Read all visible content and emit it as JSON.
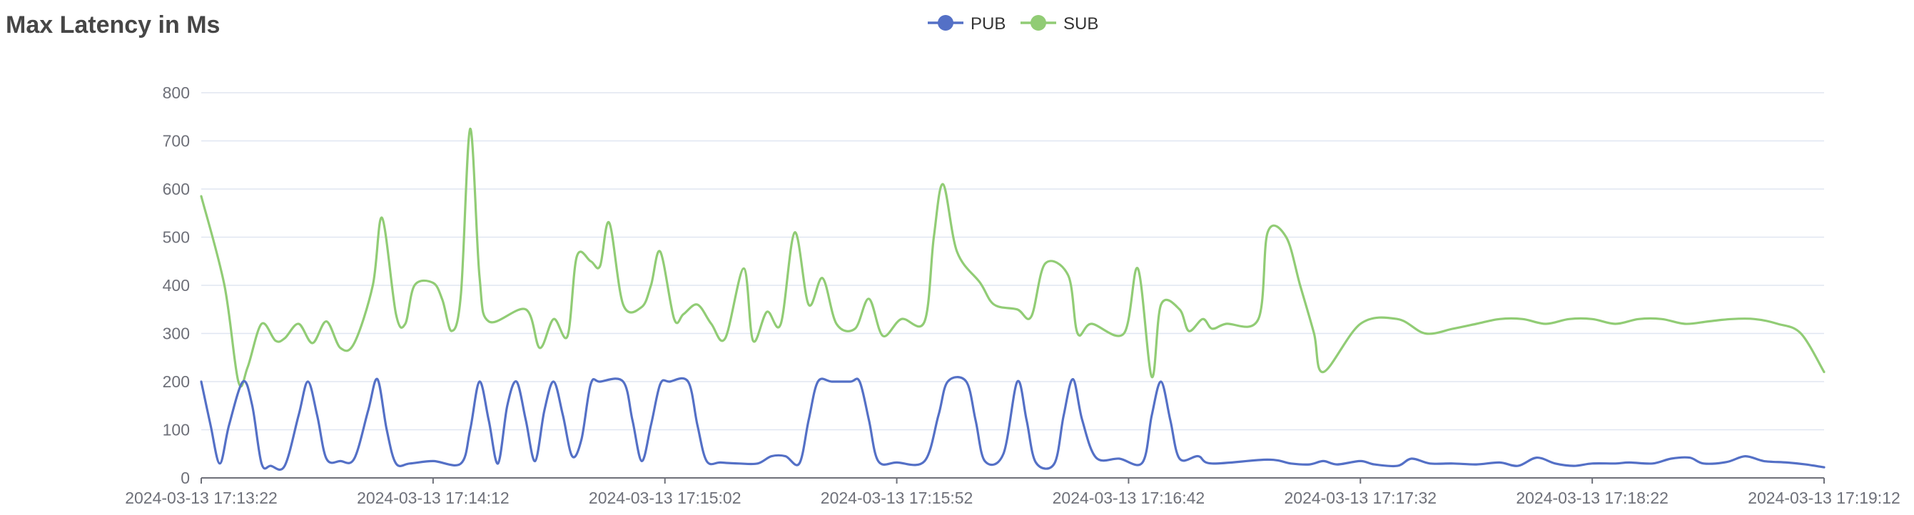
{
  "chart_data": {
    "type": "line",
    "title": "Max Latency in Ms",
    "xlabel": "",
    "ylabel": "",
    "ylim": [
      0,
      800
    ],
    "y_ticks": [
      0,
      100,
      200,
      300,
      400,
      500,
      600,
      700,
      800
    ],
    "x_tick_labels": [
      "2024-03-13 17:13:22",
      "2024-03-13 17:14:12",
      "2024-03-13 17:15:02",
      "2024-03-13 17:15:52",
      "2024-03-13 17:16:42",
      "2024-03-13 17:17:32",
      "2024-03-13 17:18:22",
      "2024-03-13 17:19:12"
    ],
    "x_start": "2024-03-13 17:13:22",
    "x_end": "2024-03-13 17:19:12",
    "grid": true,
    "legend": "top-center",
    "series": [
      {
        "name": "PUB",
        "color": "#5470c6",
        "points": [
          [
            "2024-03-13 17:13:22",
            200
          ],
          [
            "2024-03-13 17:13:24",
            110
          ],
          [
            "2024-03-13 17:13:26",
            30
          ],
          [
            "2024-03-13 17:13:28",
            110
          ],
          [
            "2024-03-13 17:13:31",
            200
          ],
          [
            "2024-03-13 17:13:33",
            150
          ],
          [
            "2024-03-13 17:13:35",
            30
          ],
          [
            "2024-03-13 17:13:37",
            25
          ],
          [
            "2024-03-13 17:13:40",
            25
          ],
          [
            "2024-03-13 17:13:43",
            130
          ],
          [
            "2024-03-13 17:13:45",
            200
          ],
          [
            "2024-03-13 17:13:47",
            130
          ],
          [
            "2024-03-13 17:13:49",
            40
          ],
          [
            "2024-03-13 17:13:52",
            35
          ],
          [
            "2024-03-13 17:13:55",
            40
          ],
          [
            "2024-03-13 17:13:58",
            140
          ],
          [
            "2024-03-13 17:14:00",
            205
          ],
          [
            "2024-03-13 17:14:02",
            100
          ],
          [
            "2024-03-13 17:14:04",
            30
          ],
          [
            "2024-03-13 17:14:07",
            30
          ],
          [
            "2024-03-13 17:14:12",
            35
          ],
          [
            "2024-03-13 17:14:18",
            30
          ],
          [
            "2024-03-13 17:14:20",
            100
          ],
          [
            "2024-03-13 17:14:22",
            200
          ],
          [
            "2024-03-13 17:14:24",
            120
          ],
          [
            "2024-03-13 17:14:26",
            30
          ],
          [
            "2024-03-13 17:14:28",
            150
          ],
          [
            "2024-03-13 17:14:30",
            200
          ],
          [
            "2024-03-13 17:14:32",
            120
          ],
          [
            "2024-03-13 17:14:34",
            35
          ],
          [
            "2024-03-13 17:14:36",
            140
          ],
          [
            "2024-03-13 17:14:38",
            200
          ],
          [
            "2024-03-13 17:14:40",
            130
          ],
          [
            "2024-03-13 17:14:42",
            45
          ],
          [
            "2024-03-13 17:14:44",
            80
          ],
          [
            "2024-03-13 17:14:46",
            195
          ],
          [
            "2024-03-13 17:14:48",
            200
          ],
          [
            "2024-03-13 17:14:53",
            200
          ],
          [
            "2024-03-13 17:14:55",
            120
          ],
          [
            "2024-03-13 17:14:57",
            35
          ],
          [
            "2024-03-13 17:14:59",
            110
          ],
          [
            "2024-03-13 17:15:01",
            195
          ],
          [
            "2024-03-13 17:15:03",
            200
          ],
          [
            "2024-03-13 17:15:07",
            200
          ],
          [
            "2024-03-13 17:15:09",
            110
          ],
          [
            "2024-03-13 17:15:11",
            35
          ],
          [
            "2024-03-13 17:15:14",
            32
          ],
          [
            "2024-03-13 17:15:18",
            30
          ],
          [
            "2024-03-13 17:15:22",
            30
          ],
          [
            "2024-03-13 17:15:25",
            45
          ],
          [
            "2024-03-13 17:15:28",
            45
          ],
          [
            "2024-03-13 17:15:31",
            30
          ],
          [
            "2024-03-13 17:15:33",
            120
          ],
          [
            "2024-03-13 17:15:35",
            200
          ],
          [
            "2024-03-13 17:15:38",
            200
          ],
          [
            "2024-03-13 17:15:42",
            200
          ],
          [
            "2024-03-13 17:15:44",
            200
          ],
          [
            "2024-03-13 17:15:46",
            120
          ],
          [
            "2024-03-13 17:15:48",
            35
          ],
          [
            "2024-03-13 17:15:52",
            32
          ],
          [
            "2024-03-13 17:15:58",
            35
          ],
          [
            "2024-03-13 17:16:01",
            130
          ],
          [
            "2024-03-13 17:16:03",
            200
          ],
          [
            "2024-03-13 17:16:07",
            200
          ],
          [
            "2024-03-13 17:16:09",
            120
          ],
          [
            "2024-03-13 17:16:11",
            35
          ],
          [
            "2024-03-13 17:16:15",
            50
          ],
          [
            "2024-03-13 17:16:18",
            200
          ],
          [
            "2024-03-13 17:16:20",
            120
          ],
          [
            "2024-03-13 17:16:22",
            32
          ],
          [
            "2024-03-13 17:16:26",
            30
          ],
          [
            "2024-03-13 17:16:28",
            130
          ],
          [
            "2024-03-13 17:16:30",
            205
          ],
          [
            "2024-03-13 17:16:32",
            120
          ],
          [
            "2024-03-13 17:16:35",
            42
          ],
          [
            "2024-03-13 17:16:40",
            40
          ],
          [
            "2024-03-13 17:16:45",
            32
          ],
          [
            "2024-03-13 17:16:47",
            130
          ],
          [
            "2024-03-13 17:16:49",
            200
          ],
          [
            "2024-03-13 17:16:51",
            120
          ],
          [
            "2024-03-13 17:16:53",
            40
          ],
          [
            "2024-03-13 17:16:57",
            45
          ],
          [
            "2024-03-13 17:17:00",
            30
          ],
          [
            "2024-03-13 17:17:12",
            38
          ],
          [
            "2024-03-13 17:17:17",
            30
          ],
          [
            "2024-03-13 17:17:21",
            28
          ],
          [
            "2024-03-13 17:17:24",
            35
          ],
          [
            "2024-03-13 17:17:27",
            28
          ],
          [
            "2024-03-13 17:17:32",
            35
          ],
          [
            "2024-03-13 17:17:35",
            28
          ],
          [
            "2024-03-13 17:17:40",
            25
          ],
          [
            "2024-03-13 17:17:43",
            40
          ],
          [
            "2024-03-13 17:17:47",
            30
          ],
          [
            "2024-03-13 17:17:52",
            30
          ],
          [
            "2024-03-13 17:17:57",
            28
          ],
          [
            "2024-03-13 17:18:02",
            32
          ],
          [
            "2024-03-13 17:18:06",
            25
          ],
          [
            "2024-03-13 17:18:10",
            42
          ],
          [
            "2024-03-13 17:18:14",
            30
          ],
          [
            "2024-03-13 17:18:18",
            25
          ],
          [
            "2024-03-13 17:18:22",
            30
          ],
          [
            "2024-03-13 17:18:27",
            30
          ],
          [
            "2024-03-13 17:18:30",
            32
          ],
          [
            "2024-03-13 17:18:35",
            30
          ],
          [
            "2024-03-13 17:18:39",
            40
          ],
          [
            "2024-03-13 17:18:43",
            42
          ],
          [
            "2024-03-13 17:18:46",
            30
          ],
          [
            "2024-03-13 17:18:51",
            33
          ],
          [
            "2024-03-13 17:18:55",
            45
          ],
          [
            "2024-03-13 17:18:59",
            35
          ],
          [
            "2024-03-13 17:19:04",
            32
          ],
          [
            "2024-03-13 17:19:08",
            28
          ],
          [
            "2024-03-13 17:19:12",
            22
          ]
        ]
      },
      {
        "name": "SUB",
        "color": "#91cc75",
        "points": [
          [
            "2024-03-13 17:13:22",
            585
          ],
          [
            "2024-03-13 17:13:27",
            400
          ],
          [
            "2024-03-13 17:13:30",
            200
          ],
          [
            "2024-03-13 17:13:32",
            230
          ],
          [
            "2024-03-13 17:13:35",
            320
          ],
          [
            "2024-03-13 17:13:38",
            285
          ],
          [
            "2024-03-13 17:13:40",
            290
          ],
          [
            "2024-03-13 17:13:43",
            320
          ],
          [
            "2024-03-13 17:13:46",
            280
          ],
          [
            "2024-03-13 17:13:49",
            325
          ],
          [
            "2024-03-13 17:13:52",
            270
          ],
          [
            "2024-03-13 17:13:55",
            280
          ],
          [
            "2024-03-13 17:13:59",
            400
          ],
          [
            "2024-03-13 17:14:01",
            540
          ],
          [
            "2024-03-13 17:14:04",
            340
          ],
          [
            "2024-03-13 17:14:06",
            320
          ],
          [
            "2024-03-13 17:14:08",
            400
          ],
          [
            "2024-03-13 17:14:12",
            405
          ],
          [
            "2024-03-13 17:14:14",
            370
          ],
          [
            "2024-03-13 17:14:16",
            305
          ],
          [
            "2024-03-13 17:14:18",
            380
          ],
          [
            "2024-03-13 17:14:20",
            725
          ],
          [
            "2024-03-13 17:14:22",
            420
          ],
          [
            "2024-03-13 17:14:24",
            325
          ],
          [
            "2024-03-13 17:14:32",
            350
          ],
          [
            "2024-03-13 17:14:35",
            270
          ],
          [
            "2024-03-13 17:14:38",
            330
          ],
          [
            "2024-03-13 17:14:41",
            295
          ],
          [
            "2024-03-13 17:14:43",
            460
          ],
          [
            "2024-03-13 17:14:46",
            450
          ],
          [
            "2024-03-13 17:14:48",
            440
          ],
          [
            "2024-03-13 17:14:50",
            530
          ],
          [
            "2024-03-13 17:14:53",
            360
          ],
          [
            "2024-03-13 17:14:57",
            355
          ],
          [
            "2024-03-13 17:14:59",
            400
          ],
          [
            "2024-03-13 17:15:01",
            470
          ],
          [
            "2024-03-13 17:15:04",
            330
          ],
          [
            "2024-03-13 17:15:06",
            340
          ],
          [
            "2024-03-13 17:15:09",
            360
          ],
          [
            "2024-03-13 17:15:12",
            320
          ],
          [
            "2024-03-13 17:15:15",
            290
          ],
          [
            "2024-03-13 17:15:19",
            435
          ],
          [
            "2024-03-13 17:15:21",
            285
          ],
          [
            "2024-03-13 17:15:24",
            345
          ],
          [
            "2024-03-13 17:15:27",
            320
          ],
          [
            "2024-03-13 17:15:30",
            510
          ],
          [
            "2024-03-13 17:15:33",
            360
          ],
          [
            "2024-03-13 17:15:36",
            415
          ],
          [
            "2024-03-13 17:15:39",
            320
          ],
          [
            "2024-03-13 17:15:43",
            310
          ],
          [
            "2024-03-13 17:15:46",
            372
          ],
          [
            "2024-03-13 17:15:49",
            295
          ],
          [
            "2024-03-13 17:15:53",
            330
          ],
          [
            "2024-03-13 17:15:58",
            325
          ],
          [
            "2024-03-13 17:16:00",
            500
          ],
          [
            "2024-03-13 17:16:02",
            610
          ],
          [
            "2024-03-13 17:16:05",
            470
          ],
          [
            "2024-03-13 17:16:10",
            405
          ],
          [
            "2024-03-13 17:16:13",
            360
          ],
          [
            "2024-03-13 17:16:18",
            350
          ],
          [
            "2024-03-13 17:16:21",
            335
          ],
          [
            "2024-03-13 17:16:24",
            445
          ],
          [
            "2024-03-13 17:16:29",
            420
          ],
          [
            "2024-03-13 17:16:31",
            300
          ],
          [
            "2024-03-13 17:16:34",
            320
          ],
          [
            "2024-03-13 17:16:41",
            300
          ],
          [
            "2024-03-13 17:16:44",
            435
          ],
          [
            "2024-03-13 17:16:47",
            210
          ],
          [
            "2024-03-13 17:16:49",
            360
          ],
          [
            "2024-03-13 17:16:53",
            350
          ],
          [
            "2024-03-13 17:16:55",
            305
          ],
          [
            "2024-03-13 17:16:58",
            330
          ],
          [
            "2024-03-13 17:17:00",
            310
          ],
          [
            "2024-03-13 17:17:03",
            320
          ],
          [
            "2024-03-13 17:17:10",
            330
          ],
          [
            "2024-03-13 17:17:12",
            510
          ],
          [
            "2024-03-13 17:17:16",
            500
          ],
          [
            "2024-03-13 17:17:19",
            400
          ],
          [
            "2024-03-13 17:17:22",
            300
          ],
          [
            "2024-03-13 17:17:24",
            220
          ],
          [
            "2024-03-13 17:17:32",
            320
          ],
          [
            "2024-03-13 17:17:40",
            330
          ],
          [
            "2024-03-13 17:17:46",
            300
          ],
          [
            "2024-03-13 17:17:52",
            310
          ],
          [
            "2024-03-13 17:17:57",
            320
          ],
          [
            "2024-03-13 17:18:02",
            330
          ],
          [
            "2024-03-13 17:18:07",
            330
          ],
          [
            "2024-03-13 17:18:12",
            320
          ],
          [
            "2024-03-13 17:18:17",
            330
          ],
          [
            "2024-03-13 17:18:22",
            330
          ],
          [
            "2024-03-13 17:18:27",
            320
          ],
          [
            "2024-03-13 17:18:32",
            330
          ],
          [
            "2024-03-13 17:18:37",
            330
          ],
          [
            "2024-03-13 17:18:42",
            320
          ],
          [
            "2024-03-13 17:18:47",
            325
          ],
          [
            "2024-03-13 17:18:52",
            330
          ],
          [
            "2024-03-13 17:18:57",
            330
          ],
          [
            "2024-03-13 17:19:02",
            320
          ],
          [
            "2024-03-13 17:19:07",
            300
          ],
          [
            "2024-03-13 17:19:12",
            220
          ]
        ]
      }
    ]
  },
  "colors": {
    "axis": "#6e7079",
    "grid": "#e0e6f1",
    "title": "#464646"
  }
}
